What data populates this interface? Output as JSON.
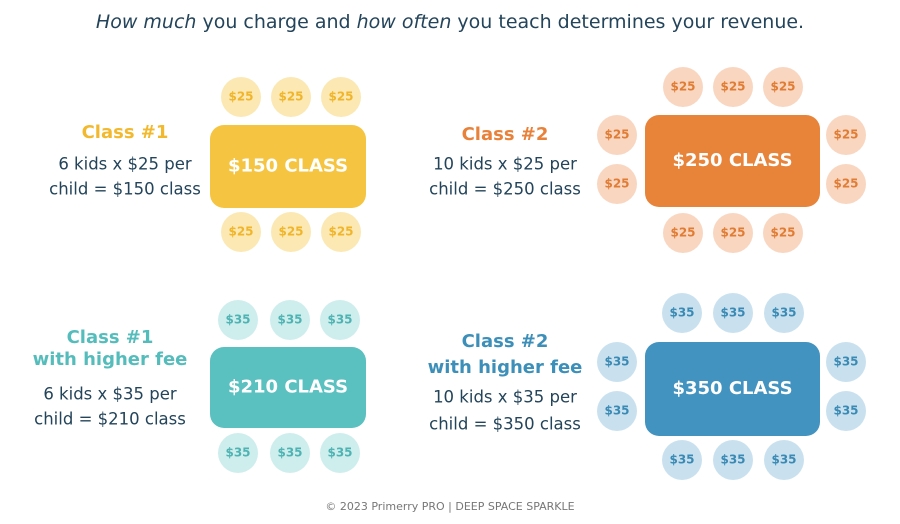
{
  "header": {
    "title": [
      {
        "text": "How much",
        "italic": true
      },
      {
        "text": " you charge and ",
        "italic": false
      },
      {
        "text": "how often",
        "italic": true
      },
      {
        "text": " you teach determines your revenue.",
        "italic": false
      }
    ]
  },
  "panels": [
    {
      "label": [
        "Class #1"
      ],
      "description": [
        "6 kids x $25 per",
        "child = $150 class"
      ],
      "table": "$150 CLASS",
      "seats": [
        "$25",
        "$25",
        "$25",
        "$25",
        "$25",
        "$25"
      ]
    },
    {
      "label": [
        "Class #2"
      ],
      "description": [
        "10 kids x $25 per",
        "child = $250 class"
      ],
      "table": "$250 CLASS",
      "seats": [
        "$25",
        "$25",
        "$25",
        "$25",
        "$25",
        "$25",
        "$25",
        "$25",
        "$25",
        "$25"
      ]
    },
    {
      "label": [
        "Class #1",
        "with higher fee"
      ],
      "description": [
        "6 kids x $35 per",
        "child = $210 class"
      ],
      "table": "$210 CLASS",
      "seats": [
        "$35",
        "$35",
        "$35",
        "$35",
        "$35",
        "$35"
      ]
    },
    {
      "label": [
        "Class #2",
        "with higher fee"
      ],
      "description": [
        "10 kids x $35 per",
        "child = $350 class"
      ],
      "table": "$350 CLASS",
      "seats": [
        "$35",
        "$35",
        "$35",
        "$35",
        "$35",
        "$35",
        "$35",
        "$35",
        "$35",
        "$35"
      ]
    }
  ],
  "footer": "© 2023 Primerry PRO | DEEP SPACE SPARKLE"
}
